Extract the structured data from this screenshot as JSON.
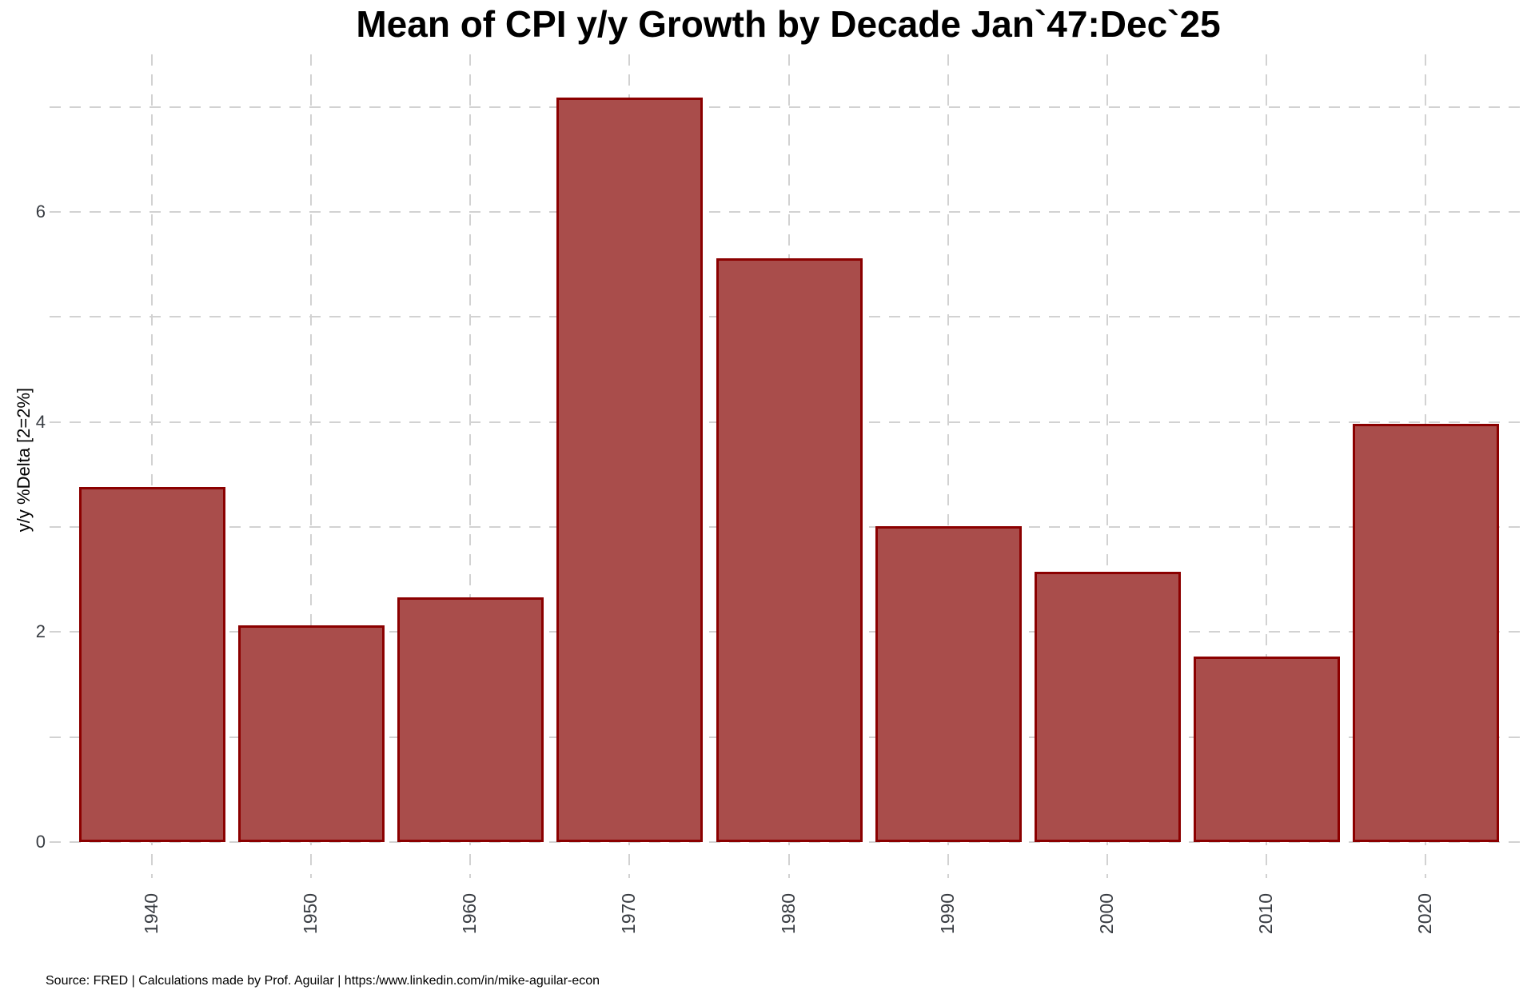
{
  "title": "Mean of CPI y/y Growth by Decade Jan`47:Dec`25",
  "source_line": "Source: FRED | Calculations made by Prof. Aguilar | https:/www.linkedin.com/in/mike-aguilar-econ",
  "chart_data": {
    "type": "bar",
    "title": "Mean of CPI y/y Growth by Decade Jan`47:Dec`25",
    "xlabel": "",
    "ylabel": "y/y %Delta [2=2%]",
    "categories": [
      "1940",
      "1950",
      "1960",
      "1970",
      "1980",
      "1990",
      "2000",
      "2010",
      "2020"
    ],
    "values": [
      3.38,
      2.06,
      2.33,
      7.09,
      5.56,
      3.01,
      2.57,
      1.77,
      3.98
    ],
    "ylim": [
      0,
      7.5
    ],
    "ytick_values": [
      0,
      2,
      4,
      6
    ],
    "ytick_labels": [
      "0",
      "2",
      "4",
      "6"
    ],
    "minor_grid_step": 1,
    "grid_style": "dashed both axes, light gray",
    "legend": "none",
    "x_tick_label_rotation_deg": -90,
    "colors": {
      "bar_fill": "#A94D4B",
      "bar_border": "#8B0000",
      "grid": "#D2D2D2",
      "tick_text": "#383C42",
      "title_text": "#000000"
    },
    "source": "Source: FRED | Calculations made by Prof. Aguilar | https:/www.linkedin.com/in/mike-aguilar-econ"
  }
}
